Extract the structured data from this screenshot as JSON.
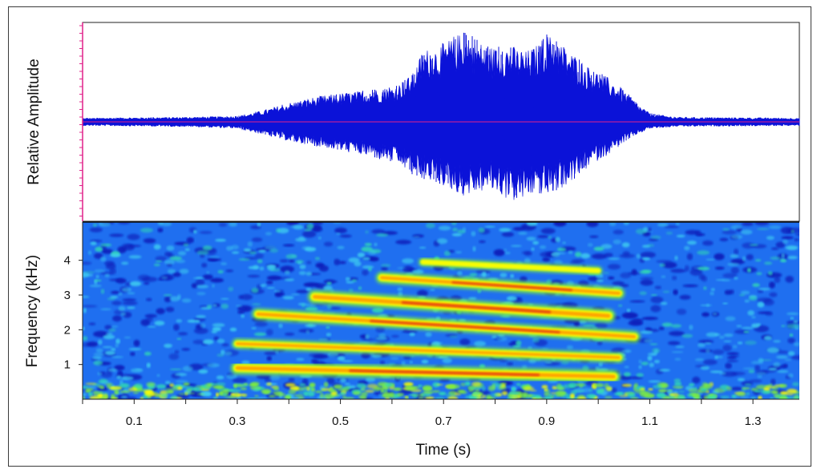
{
  "chart_data": [
    {
      "type": "line",
      "ylabel": "Relative Amplitude",
      "x_range": [
        0,
        1.39
      ],
      "colors": {
        "waveform": "#0b12d8",
        "baseline": "#e0208a",
        "axis": "#e0208a"
      },
      "envelope": {
        "x": [
          0.0,
          0.2,
          0.3,
          0.35,
          0.4,
          0.45,
          0.5,
          0.55,
          0.6,
          0.62,
          0.64,
          0.66,
          0.7,
          0.72,
          0.74,
          0.76,
          0.78,
          0.8,
          0.82,
          0.84,
          0.86,
          0.88,
          0.9,
          0.92,
          0.94,
          0.96,
          0.98,
          1.0,
          1.02,
          1.04,
          1.06,
          1.08,
          1.1,
          1.15,
          1.39
        ],
        "positive": [
          0.04,
          0.05,
          0.06,
          0.12,
          0.2,
          0.26,
          0.3,
          0.33,
          0.37,
          0.42,
          0.5,
          0.75,
          0.82,
          0.9,
          0.94,
          0.88,
          0.8,
          0.78,
          0.82,
          0.78,
          0.74,
          0.8,
          0.92,
          0.86,
          0.76,
          0.68,
          0.58,
          0.52,
          0.46,
          0.38,
          0.28,
          0.17,
          0.09,
          0.05,
          0.04
        ],
        "negative": [
          0.04,
          0.05,
          0.07,
          0.13,
          0.2,
          0.25,
          0.3,
          0.36,
          0.42,
          0.48,
          0.55,
          0.6,
          0.66,
          0.72,
          0.78,
          0.76,
          0.72,
          0.74,
          0.8,
          0.84,
          0.82,
          0.74,
          0.78,
          0.72,
          0.66,
          0.58,
          0.48,
          0.4,
          0.34,
          0.26,
          0.18,
          0.12,
          0.07,
          0.05,
          0.04
        ]
      }
    },
    {
      "type": "heatmap",
      "xlabel": "Time (s)",
      "ylabel": "Frequency (kHz)",
      "x_range": [
        0,
        1.39
      ],
      "y_range": [
        0,
        5.1
      ],
      "xticks": [
        0.1,
        0.3,
        0.5,
        0.7,
        0.9,
        1.1,
        1.3
      ],
      "xtick_labels": [
        "0.1",
        "0.3",
        "0.5",
        "0.7",
        "0.9",
        "1.1",
        "1.3"
      ],
      "yticks": [
        1,
        2,
        3,
        4
      ],
      "ytick_labels": [
        "1",
        "2",
        "3",
        "4"
      ],
      "colormap": [
        "#0a1fb8",
        "#1f6ff0",
        "#3fd0f0",
        "#33e0b0",
        "#7ff03a",
        "#ffff00",
        "#ff9900",
        "#e03010"
      ],
      "harmonics": [
        {
          "t_start": 0.3,
          "t_end": 1.03,
          "f_start": 0.9,
          "f_end": 0.65,
          "intensity": 0.95
        },
        {
          "t_start": 0.3,
          "t_end": 1.04,
          "f_start": 1.6,
          "f_end": 1.2,
          "intensity": 0.72
        },
        {
          "t_start": 0.34,
          "t_end": 1.07,
          "f_start": 2.45,
          "f_end": 1.8,
          "intensity": 0.85
        },
        {
          "t_start": 0.45,
          "t_end": 1.02,
          "f_start": 2.95,
          "f_end": 2.4,
          "intensity": 1.0
        },
        {
          "t_start": 0.58,
          "t_end": 1.04,
          "f_start": 3.5,
          "f_end": 3.05,
          "intensity": 0.82
        },
        {
          "t_start": 0.66,
          "t_end": 1.0,
          "f_start": 3.95,
          "f_end": 3.7,
          "intensity": 0.55
        }
      ]
    }
  ]
}
